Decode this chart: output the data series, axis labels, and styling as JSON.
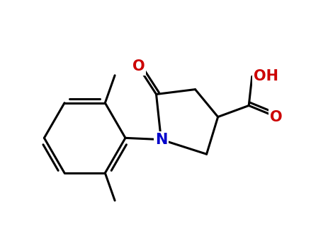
{
  "bg_color": "#ffffff",
  "bond_color": "#000000",
  "N_color": "#0000cc",
  "O_color": "#cc0000",
  "bond_width": 2.2,
  "xlim": [
    0,
    10
  ],
  "ylim": [
    0,
    7.5
  ],
  "figsize": [
    4.64,
    3.54
  ],
  "dpi": 100
}
